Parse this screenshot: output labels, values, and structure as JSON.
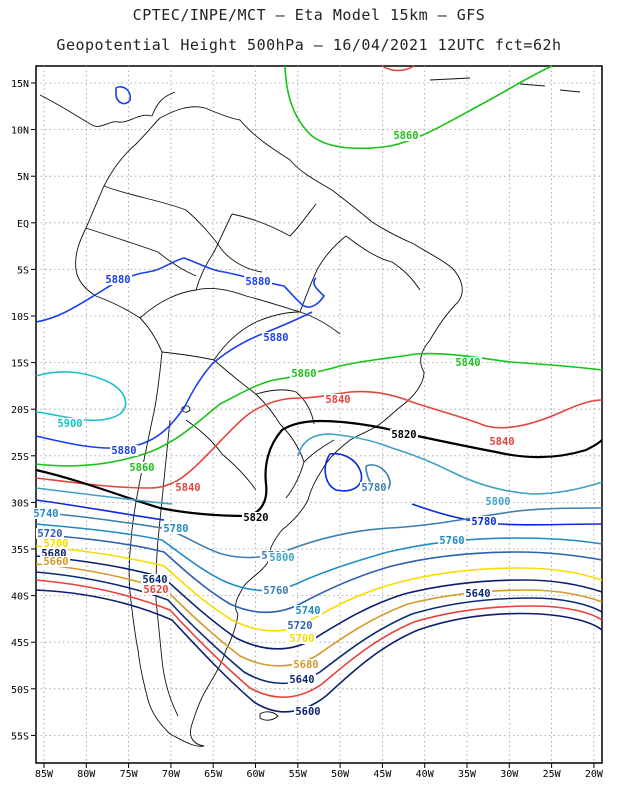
{
  "header": {
    "line1": "CPTEC/INPE/MCT –  Eta Model 15km – GFS",
    "line2": "Geopotential Height 500hPa – 16/04/2021 12UTC fct=62h"
  },
  "map": {
    "lon_labels": [
      "85W",
      "80W",
      "75W",
      "70W",
      "65W",
      "60W",
      "55W",
      "50W",
      "45W",
      "40W",
      "35W",
      "30W",
      "25W",
      "20W"
    ],
    "lat_labels": [
      "15N",
      "10N",
      "5N",
      "EQ",
      "5S",
      "10S",
      "15S",
      "20S",
      "25S",
      "30S",
      "35S",
      "40S",
      "45S",
      "50S",
      "55S"
    ],
    "contour_colors": {
      "5600": "#0a1e6e",
      "5620": "#e8413a",
      "5640": "#0b2a74",
      "5660": "#d39a2d",
      "5680": "#ffe71a",
      "5700": "#f5dd00",
      "5720": "#2c5fb0",
      "5740": "#1f8bc4",
      "5760": "#3b7fb1",
      "5780": "#0b2ad8",
      "5800": "#3fa1c4",
      "5820": "#000000",
      "5840": "#e2453b",
      "5860": "#19c219",
      "5880": "#1a3ff0",
      "5900": "#18c3c8"
    },
    "contour_labels": [
      {
        "text": "5860",
        "color": "#19c219"
      },
      {
        "text": "5880",
        "color": "#1a3ff0"
      },
      {
        "text": "5880",
        "color": "#1a3ff0"
      },
      {
        "text": "5880",
        "color": "#1a3ff0"
      },
      {
        "text": "5860",
        "color": "#19c219"
      },
      {
        "text": "5840",
        "color": "#19c219"
      },
      {
        "text": "5840",
        "color": "#e2453b"
      },
      {
        "text": "5820",
        "color": "#000000"
      },
      {
        "text": "5840",
        "color": "#e2453b"
      },
      {
        "text": "5900",
        "color": "#18c3c8"
      },
      {
        "text": "5880",
        "color": "#1a3ff0"
      },
      {
        "text": "5860",
        "color": "#19c219"
      },
      {
        "text": "5840",
        "color": "#e2453b"
      },
      {
        "text": "5780",
        "color": "#3b7fb1"
      },
      {
        "text": "5800",
        "color": "#3fa1c4"
      },
      {
        "text": "5780",
        "color": "#0b2ad8"
      },
      {
        "text": "5820",
        "color": "#000000"
      },
      {
        "text": "5780",
        "color": "#1f8bc4"
      },
      {
        "text": "5760",
        "color": "#3b7fb1"
      },
      {
        "text": "5800",
        "color": "#3fa1c4"
      },
      {
        "text": "5760",
        "color": "#1f8bc4"
      },
      {
        "text": "5740",
        "color": "#1f8bc4"
      },
      {
        "text": "5720",
        "color": "#2c5fb0"
      },
      {
        "text": "5700",
        "color": "#f5dd00"
      },
      {
        "text": "5680",
        "color": "#0a1e6e"
      },
      {
        "text": "5660",
        "color": "#d39a2d"
      },
      {
        "text": "5640",
        "color": "#0b2a74"
      },
      {
        "text": "5620",
        "color": "#e8413a"
      },
      {
        "text": "5600",
        "color": "#0a1e6e"
      },
      {
        "text": "5640",
        "color": "#0b2a74"
      },
      {
        "text": "5740",
        "color": "#1f8bc4"
      },
      {
        "text": "5720",
        "color": "#2c5fb0"
      },
      {
        "text": "5700",
        "color": "#f5dd00"
      },
      {
        "text": "5680",
        "color": "#d39a2d"
      },
      {
        "text": "5640",
        "color": "#0b2a74"
      },
      {
        "text": "5760",
        "color": "#3b7fb1"
      }
    ]
  }
}
